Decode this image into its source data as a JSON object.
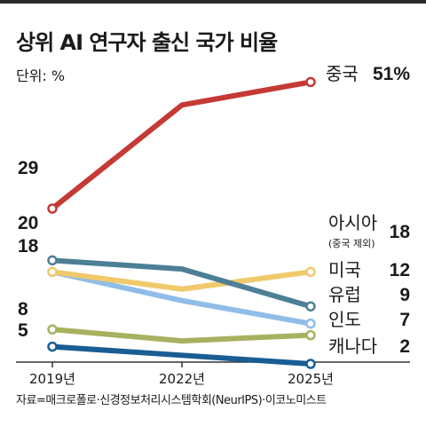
{
  "header": {
    "title": "상위 AI 연구자 출신 국가 비율",
    "unit": "단위: %"
  },
  "footer": {
    "source": "자료=매크로폴로·신경정보처리시스템학회(NeurIPS)·이코노미스트"
  },
  "colors": {
    "china": "#c43a35",
    "asia": "#f0c96b",
    "usa": "#4d7f96",
    "europe": "#8fbde8",
    "india": "#a8b160",
    "canada": "#195d93",
    "axis": "#333333"
  },
  "chart_data": {
    "type": "line",
    "x": [
      "2019년",
      "2022년",
      "2025년"
    ],
    "ylim": [
      0,
      56
    ],
    "series": [
      {
        "key": "china",
        "name": "중국",
        "values": [
          29,
          47,
          51
        ],
        "start_label": "29",
        "end_label": "51%"
      },
      {
        "key": "usa",
        "name": "미국",
        "values": [
          20,
          18.5,
          12
        ],
        "start_label": "20",
        "end_label": "12"
      },
      {
        "key": "asia",
        "name": "아시아",
        "note": "(중국 제외)",
        "values": [
          18,
          15,
          18
        ],
        "start_label": "18",
        "end_label": "18"
      },
      {
        "key": "europe",
        "name": "유럽",
        "values": [
          18,
          13,
          9
        ],
        "start_label": "",
        "end_label": "9"
      },
      {
        "key": "india",
        "name": "인도",
        "values": [
          8,
          6,
          7
        ],
        "start_label": "8",
        "end_label": "7"
      },
      {
        "key": "canada",
        "name": "캐나다",
        "values": [
          5,
          3.5,
          2
        ],
        "start_label": "5",
        "end_label": "2"
      }
    ]
  }
}
